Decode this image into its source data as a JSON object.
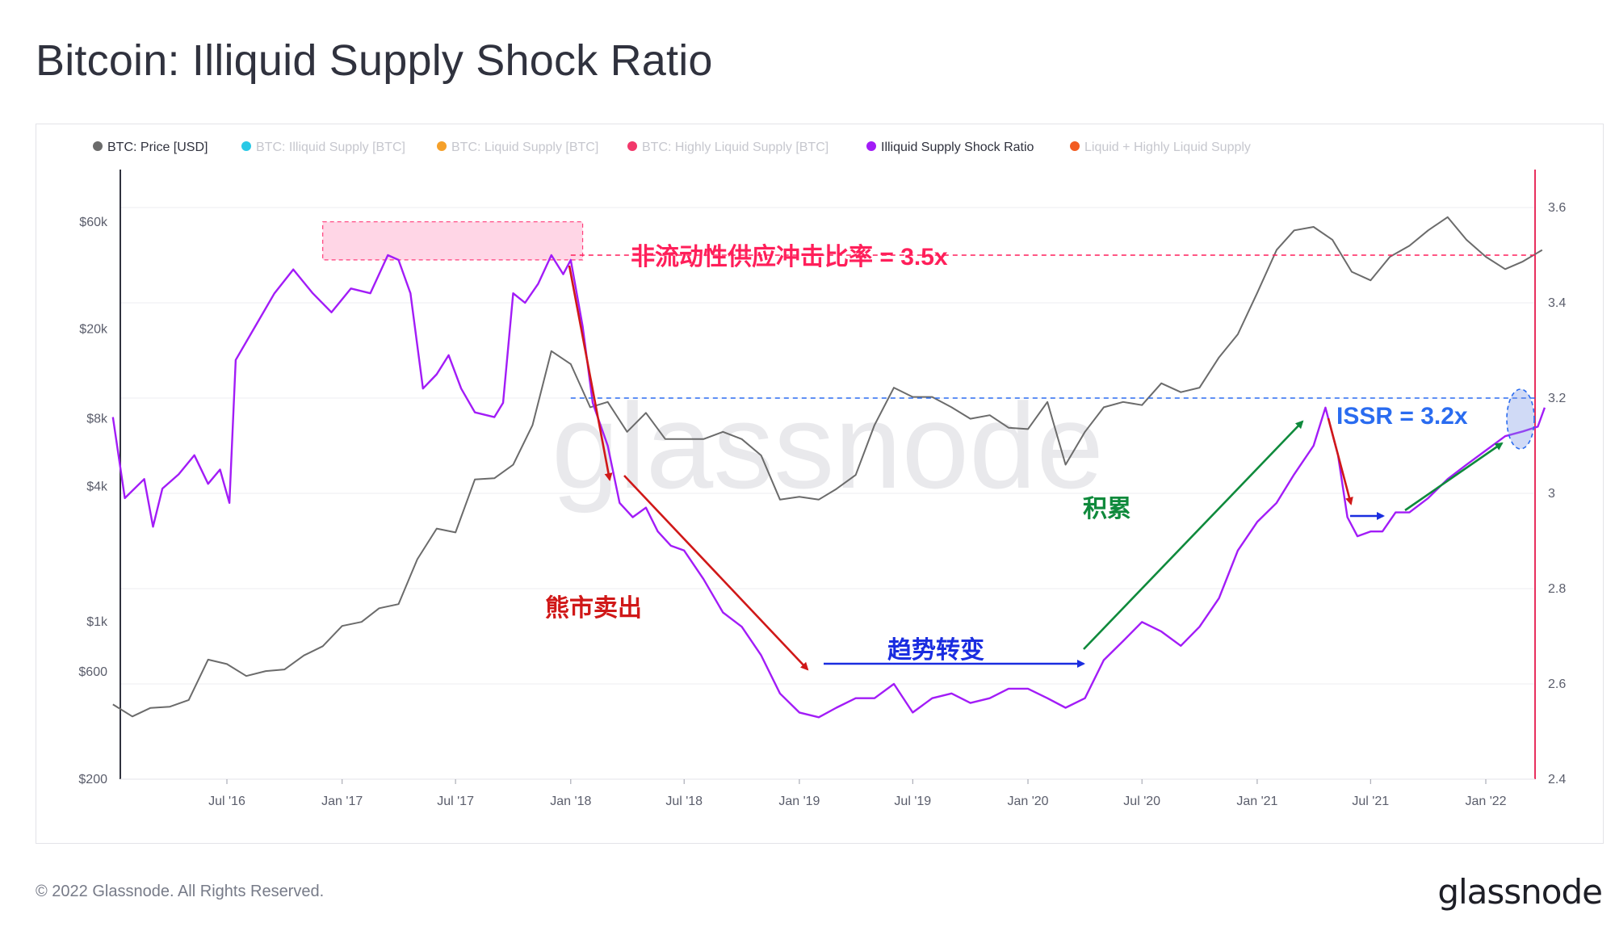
{
  "header": {
    "title": "Bitcoin: Illiquid Supply Shock Ratio"
  },
  "footer": {
    "copyright": "© 2022 Glassnode. All Rights Reserved.",
    "logo_text": "glassnode"
  },
  "watermark": "glassnode",
  "legend": [
    {
      "label": "BTC: Price [USD]",
      "color": "#6b6b6b",
      "active": true
    },
    {
      "label": "BTC: Illiquid Supply [BTC]",
      "color": "#2ac9e6",
      "active": false
    },
    {
      "label": "BTC: Liquid Supply [BTC]",
      "color": "#f5a02a",
      "active": false
    },
    {
      "label": "BTC: Highly Liquid Supply [BTC]",
      "color": "#f2386b",
      "active": false
    },
    {
      "label": "Illiquid Supply Shock Ratio",
      "color": "#a21cf7",
      "active": true
    },
    {
      "label": "Liquid + Highly Liquid Supply",
      "color": "#f25c22",
      "active": false
    }
  ],
  "annotations": {
    "issr_peak": "非流动性供应冲击比率 = 3.5x",
    "issr_now": "ISSR = 3.2x",
    "bear_sell": "熊市卖出",
    "trend_change": "趋势转变",
    "accumulation": "积累"
  },
  "chart_data": {
    "type": "line",
    "title": "Bitcoin: Illiquid Supply Shock Ratio",
    "x_start": "2016-01",
    "x_ticks": [
      "Jul '16",
      "Jan '17",
      "Jul '17",
      "Jan '18",
      "Jul '18",
      "Jan '19",
      "Jul '19",
      "Jan '20",
      "Jul '20",
      "Jan '21",
      "Jul '21",
      "Jan '22"
    ],
    "y_left": {
      "label": "BTC: Price [USD]",
      "scale": "log",
      "ticks": [
        "$200",
        "$600",
        "$1k",
        "$4k",
        "$8k",
        "$20k",
        "$60k"
      ],
      "range": [
        200,
        80000
      ]
    },
    "y_right": {
      "label": "Illiquid Supply Shock Ratio",
      "scale": "linear",
      "ticks": [
        "2.4",
        "2.6",
        "2.8",
        "3",
        "3.2",
        "3.4",
        "3.6"
      ],
      "range": [
        2.4,
        3.62
      ]
    },
    "grid": true,
    "legend_position": "top-left",
    "series": [
      {
        "name": "BTC: Price [USD]",
        "axis": "left",
        "color": "#6b6b6b",
        "points": [
          [
            "2016-01-01",
            430
          ],
          [
            "2016-02-01",
            380
          ],
          [
            "2016-03-01",
            415
          ],
          [
            "2016-04-01",
            420
          ],
          [
            "2016-05-01",
            450
          ],
          [
            "2016-06-01",
            680
          ],
          [
            "2016-07-01",
            650
          ],
          [
            "2016-08-01",
            575
          ],
          [
            "2016-09-01",
            605
          ],
          [
            "2016-10-01",
            615
          ],
          [
            "2016-11-01",
            710
          ],
          [
            "2016-12-01",
            780
          ],
          [
            "2017-01-01",
            960
          ],
          [
            "2017-02-01",
            1000
          ],
          [
            "2017-03-01",
            1150
          ],
          [
            "2017-04-01",
            1200
          ],
          [
            "2017-05-01",
            1900
          ],
          [
            "2017-06-01",
            2600
          ],
          [
            "2017-07-01",
            2500
          ],
          [
            "2017-08-01",
            4300
          ],
          [
            "2017-09-01",
            4350
          ],
          [
            "2017-10-01",
            5000
          ],
          [
            "2017-11-01",
            7500
          ],
          [
            "2017-12-01",
            16000
          ],
          [
            "2018-01-01",
            14000
          ],
          [
            "2018-02-01",
            9000
          ],
          [
            "2018-03-01",
            9500
          ],
          [
            "2018-04-01",
            7000
          ],
          [
            "2018-05-01",
            8500
          ],
          [
            "2018-06-01",
            6500
          ],
          [
            "2018-07-01",
            6500
          ],
          [
            "2018-08-01",
            6500
          ],
          [
            "2018-09-01",
            7000
          ],
          [
            "2018-10-01",
            6500
          ],
          [
            "2018-11-01",
            5500
          ],
          [
            "2018-12-01",
            3500
          ],
          [
            "2019-01-01",
            3600
          ],
          [
            "2019-02-01",
            3500
          ],
          [
            "2019-03-01",
            3900
          ],
          [
            "2019-04-01",
            4500
          ],
          [
            "2019-05-01",
            7500
          ],
          [
            "2019-06-01",
            11000
          ],
          [
            "2019-07-01",
            10000
          ],
          [
            "2019-08-01",
            10000
          ],
          [
            "2019-09-01",
            9000
          ],
          [
            "2019-10-01",
            8000
          ],
          [
            "2019-11-01",
            8300
          ],
          [
            "2019-12-01",
            7300
          ],
          [
            "2020-01-01",
            7200
          ],
          [
            "2020-02-01",
            9500
          ],
          [
            "2020-03-01",
            5000
          ],
          [
            "2020-04-01",
            7000
          ],
          [
            "2020-05-01",
            9000
          ],
          [
            "2020-06-01",
            9500
          ],
          [
            "2020-07-01",
            9200
          ],
          [
            "2020-08-01",
            11500
          ],
          [
            "2020-09-01",
            10500
          ],
          [
            "2020-10-01",
            11000
          ],
          [
            "2020-11-01",
            15000
          ],
          [
            "2020-12-01",
            19000
          ],
          [
            "2021-01-01",
            29000
          ],
          [
            "2021-02-01",
            45000
          ],
          [
            "2021-03-01",
            55000
          ],
          [
            "2021-04-01",
            57000
          ],
          [
            "2021-05-01",
            50000
          ],
          [
            "2021-06-01",
            36000
          ],
          [
            "2021-07-01",
            33000
          ],
          [
            "2021-08-01",
            42000
          ],
          [
            "2021-09-01",
            47000
          ],
          [
            "2021-10-01",
            55000
          ],
          [
            "2021-11-01",
            63000
          ],
          [
            "2021-12-01",
            50000
          ],
          [
            "2022-01-01",
            42000
          ],
          [
            "2022-02-01",
            37000
          ],
          [
            "2022-03-01",
            40000
          ],
          [
            "2022-04-01",
            45000
          ]
        ]
      },
      {
        "name": "Illiquid Supply Shock Ratio",
        "axis": "right",
        "color": "#a21cf7",
        "points": [
          [
            "2016-01-01",
            3.16
          ],
          [
            "2016-01-20",
            2.99
          ],
          [
            "2016-02-20",
            3.03
          ],
          [
            "2016-03-05",
            2.93
          ],
          [
            "2016-03-20",
            3.01
          ],
          [
            "2016-04-15",
            3.04
          ],
          [
            "2016-05-10",
            3.08
          ],
          [
            "2016-06-01",
            3.02
          ],
          [
            "2016-06-20",
            3.05
          ],
          [
            "2016-07-05",
            2.98
          ],
          [
            "2016-07-15",
            3.28
          ],
          [
            "2016-08-15",
            3.35
          ],
          [
            "2016-09-15",
            3.42
          ],
          [
            "2016-10-15",
            3.47
          ],
          [
            "2016-11-15",
            3.42
          ],
          [
            "2016-12-15",
            3.38
          ],
          [
            "2017-01-15",
            3.43
          ],
          [
            "2017-02-15",
            3.42
          ],
          [
            "2017-03-15",
            3.5
          ],
          [
            "2017-04-01",
            3.49
          ],
          [
            "2017-04-20",
            3.42
          ],
          [
            "2017-05-10",
            3.22
          ],
          [
            "2017-06-01",
            3.25
          ],
          [
            "2017-06-20",
            3.29
          ],
          [
            "2017-07-10",
            3.22
          ],
          [
            "2017-08-01",
            3.17
          ],
          [
            "2017-09-01",
            3.16
          ],
          [
            "2017-09-15",
            3.19
          ],
          [
            "2017-10-01",
            3.42
          ],
          [
            "2017-10-20",
            3.4
          ],
          [
            "2017-11-10",
            3.44
          ],
          [
            "2017-12-01",
            3.5
          ],
          [
            "2017-12-20",
            3.46
          ],
          [
            "2018-01-01",
            3.49
          ],
          [
            "2018-01-20",
            3.35
          ],
          [
            "2018-02-05",
            3.19
          ],
          [
            "2018-03-01",
            3.1
          ],
          [
            "2018-03-20",
            2.98
          ],
          [
            "2018-04-10",
            2.95
          ],
          [
            "2018-05-01",
            2.97
          ],
          [
            "2018-05-20",
            2.92
          ],
          [
            "2018-06-10",
            2.89
          ],
          [
            "2018-07-01",
            2.88
          ],
          [
            "2018-08-01",
            2.82
          ],
          [
            "2018-09-01",
            2.75
          ],
          [
            "2018-10-01",
            2.72
          ],
          [
            "2018-11-01",
            2.66
          ],
          [
            "2018-12-01",
            2.58
          ],
          [
            "2019-01-01",
            2.54
          ],
          [
            "2019-02-01",
            2.53
          ],
          [
            "2019-03-01",
            2.55
          ],
          [
            "2019-04-01",
            2.57
          ],
          [
            "2019-05-01",
            2.57
          ],
          [
            "2019-06-01",
            2.6
          ],
          [
            "2019-07-01",
            2.54
          ],
          [
            "2019-08-01",
            2.57
          ],
          [
            "2019-09-01",
            2.58
          ],
          [
            "2019-10-01",
            2.56
          ],
          [
            "2019-11-01",
            2.57
          ],
          [
            "2019-12-01",
            2.59
          ],
          [
            "2020-01-01",
            2.59
          ],
          [
            "2020-02-01",
            2.57
          ],
          [
            "2020-03-01",
            2.55
          ],
          [
            "2020-04-01",
            2.57
          ],
          [
            "2020-05-01",
            2.65
          ],
          [
            "2020-06-01",
            2.69
          ],
          [
            "2020-07-01",
            2.73
          ],
          [
            "2020-08-01",
            2.71
          ],
          [
            "2020-09-01",
            2.68
          ],
          [
            "2020-10-01",
            2.72
          ],
          [
            "2020-11-01",
            2.78
          ],
          [
            "2020-12-01",
            2.88
          ],
          [
            "2021-01-01",
            2.94
          ],
          [
            "2021-02-01",
            2.98
          ],
          [
            "2021-03-01",
            3.04
          ],
          [
            "2021-04-01",
            3.1
          ],
          [
            "2021-04-20",
            3.18
          ],
          [
            "2021-05-10",
            3.08
          ],
          [
            "2021-05-25",
            2.95
          ],
          [
            "2021-06-10",
            2.91
          ],
          [
            "2021-07-01",
            2.92
          ],
          [
            "2021-07-20",
            2.92
          ],
          [
            "2021-08-10",
            2.96
          ],
          [
            "2021-09-01",
            2.96
          ],
          [
            "2021-10-01",
            2.99
          ],
          [
            "2021-11-01",
            3.03
          ],
          [
            "2021-12-01",
            3.06
          ],
          [
            "2022-01-01",
            3.09
          ],
          [
            "2022-02-01",
            3.12
          ],
          [
            "2022-03-01",
            3.13
          ],
          [
            "2022-03-25",
            3.14
          ],
          [
            "2022-04-05",
            3.18
          ]
        ]
      }
    ],
    "reference_lines": [
      {
        "value": 3.5,
        "axis": "right",
        "style": "dashed",
        "color": "#ff1f5a",
        "label": "非流动性供应冲击比率 = 3.5x"
      },
      {
        "value": 3.2,
        "axis": "right",
        "style": "dashed",
        "color": "#2a6cf0",
        "label": "ISSR = 3.2x"
      }
    ]
  }
}
